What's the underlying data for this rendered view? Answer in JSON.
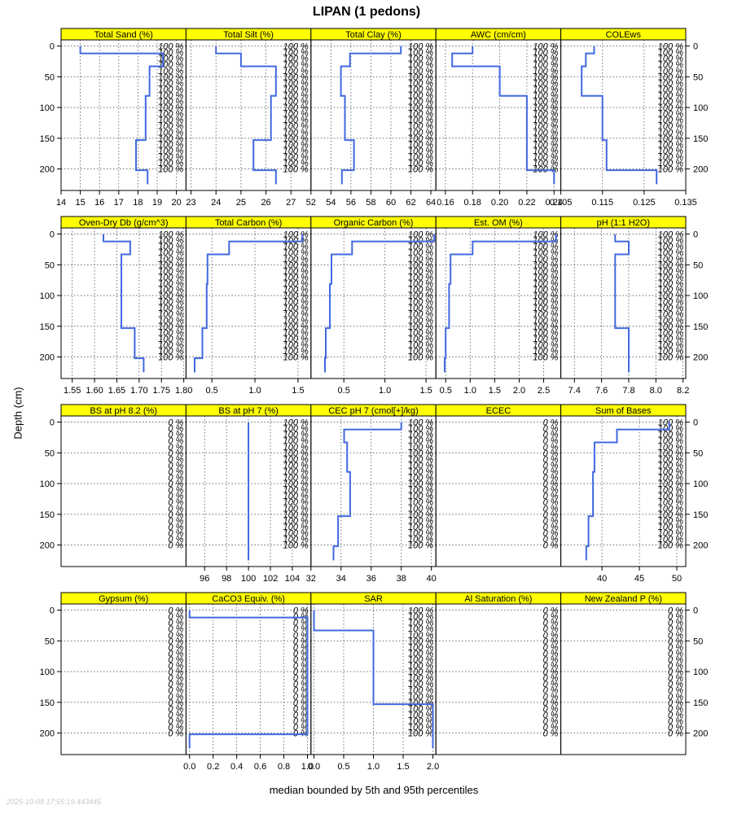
{
  "title": "LIPAN (1 pedons)",
  "ylabel": "Depth (cm)",
  "xlabel": "median bounded by 5th and 95th percentiles",
  "timestamp": "2025-10-08 17:55:19.443445",
  "colors": {
    "strip": "#ffff00",
    "line": "#4169e1",
    "grid": "#555555"
  },
  "chart_data": {
    "type": "line",
    "depth_axis": {
      "ylim": [
        235,
        -10
      ],
      "ticks": [
        0,
        50,
        100,
        150,
        200
      ]
    },
    "percent_depths": [
      0,
      10,
      20,
      30,
      40,
      50,
      60,
      70,
      80,
      90,
      100,
      110,
      120,
      130,
      140,
      150,
      160,
      170,
      180,
      190,
      200
    ],
    "percent_depths_tick_step": 20,
    "panels": [
      {
        "name": "Total Sand (%)",
        "xlim": [
          14,
          20.5
        ],
        "ticks": [
          14,
          15,
          16,
          17,
          18,
          19,
          20
        ],
        "pct": "100 %",
        "profile": [
          [
            15,
            0
          ],
          [
            15,
            12
          ],
          [
            19.3,
            12
          ],
          [
            19.3,
            33
          ],
          [
            18.6,
            33
          ],
          [
            18.6,
            81
          ],
          [
            18.4,
            81
          ],
          [
            18.4,
            153
          ],
          [
            17.9,
            153
          ],
          [
            17.9,
            202
          ],
          [
            18.5,
            202
          ],
          [
            18.5,
            225
          ]
        ]
      },
      {
        "name": "Total Silt (%)",
        "xlim": [
          22.8,
          27.8
        ],
        "ticks": [
          23,
          24,
          25,
          26,
          27
        ],
        "pct": "100 %",
        "profile": [
          [
            24,
            0
          ],
          [
            24,
            12
          ],
          [
            25,
            12
          ],
          [
            25,
            33
          ],
          [
            26.4,
            33
          ],
          [
            26.4,
            81
          ],
          [
            26.2,
            81
          ],
          [
            26.2,
            153
          ],
          [
            25.5,
            153
          ],
          [
            25.5,
            202
          ],
          [
            26.4,
            202
          ],
          [
            26.4,
            225
          ]
        ]
      },
      {
        "name": "Total Clay (%)",
        "xlim": [
          52,
          64.5
        ],
        "ticks": [
          52,
          54,
          56,
          58,
          60,
          62,
          64
        ],
        "pct": "100 %",
        "profile": [
          [
            61,
            0
          ],
          [
            61,
            12
          ],
          [
            55.9,
            12
          ],
          [
            55.9,
            33
          ],
          [
            55,
            33
          ],
          [
            55,
            81
          ],
          [
            55.4,
            81
          ],
          [
            55.4,
            153
          ],
          [
            56.3,
            153
          ],
          [
            56.3,
            202
          ],
          [
            55.1,
            202
          ],
          [
            55.1,
            225
          ]
        ]
      },
      {
        "name": "AWC (cm/cm)",
        "xlim": [
          0.153,
          0.245
        ],
        "ticks": [
          0.16,
          0.18,
          0.2,
          0.22,
          0.24
        ],
        "pct": "100 %",
        "profile": [
          [
            0.18,
            0
          ],
          [
            0.18,
            12
          ],
          [
            0.165,
            12
          ],
          [
            0.165,
            33
          ],
          [
            0.2,
            33
          ],
          [
            0.2,
            81
          ],
          [
            0.22,
            81
          ],
          [
            0.22,
            202
          ],
          [
            0.24,
            202
          ],
          [
            0.24,
            225
          ]
        ]
      },
      {
        "name": "COLEws",
        "xlim": [
          0.105,
          0.135
        ],
        "ticks": [
          0.105,
          0.115,
          0.125,
          0.135
        ],
        "pct": "100 %",
        "profile": [
          [
            0.113,
            0
          ],
          [
            0.113,
            12
          ],
          [
            0.111,
            12
          ],
          [
            0.111,
            33
          ],
          [
            0.11,
            33
          ],
          [
            0.11,
            81
          ],
          [
            0.115,
            81
          ],
          [
            0.115,
            153
          ],
          [
            0.116,
            153
          ],
          [
            0.116,
            202
          ],
          [
            0.128,
            202
          ],
          [
            0.128,
            225
          ]
        ]
      },
      {
        "name": "Oven-Dry Db (g/cm^3)",
        "xlim": [
          1.525,
          1.805
        ],
        "ticks": [
          1.55,
          1.6,
          1.65,
          1.7,
          1.75,
          1.8
        ],
        "pct": "100 %",
        "profile": [
          [
            1.62,
            0
          ],
          [
            1.62,
            12
          ],
          [
            1.68,
            12
          ],
          [
            1.68,
            33
          ],
          [
            1.66,
            33
          ],
          [
            1.66,
            153
          ],
          [
            1.69,
            153
          ],
          [
            1.69,
            202
          ],
          [
            1.71,
            202
          ],
          [
            1.71,
            225
          ]
        ]
      },
      {
        "name": "Total Carbon (%)",
        "xlim": [
          0.2,
          1.65
        ],
        "ticks": [
          0.5,
          1.0,
          1.5
        ],
        "pct": "100 %",
        "profile": [
          [
            1.55,
            0
          ],
          [
            1.55,
            12
          ],
          [
            0.7,
            12
          ],
          [
            0.7,
            33
          ],
          [
            0.45,
            33
          ],
          [
            0.45,
            81
          ],
          [
            0.44,
            81
          ],
          [
            0.44,
            153
          ],
          [
            0.39,
            153
          ],
          [
            0.39,
            202
          ],
          [
            0.3,
            202
          ],
          [
            0.3,
            225
          ]
        ]
      },
      {
        "name": "Organic Carbon (%)",
        "xlim": [
          0.1,
          1.62
        ],
        "ticks": [
          0.5,
          1.0,
          1.5
        ],
        "pct": "100 %",
        "profile": [
          [
            1.6,
            0
          ],
          [
            1.6,
            12
          ],
          [
            0.6,
            12
          ],
          [
            0.6,
            33
          ],
          [
            0.35,
            33
          ],
          [
            0.35,
            81
          ],
          [
            0.33,
            81
          ],
          [
            0.33,
            153
          ],
          [
            0.28,
            153
          ],
          [
            0.28,
            202
          ],
          [
            0.27,
            202
          ],
          [
            0.27,
            225
          ]
        ]
      },
      {
        "name": "Est. OM (%)",
        "xlim": [
          0.3,
          2.85
        ],
        "ticks": [
          0.5,
          1.0,
          1.5,
          2.0,
          2.5
        ],
        "pct": "100 %",
        "profile": [
          [
            2.75,
            0
          ],
          [
            2.75,
            12
          ],
          [
            1.05,
            12
          ],
          [
            1.05,
            33
          ],
          [
            0.6,
            33
          ],
          [
            0.6,
            81
          ],
          [
            0.57,
            81
          ],
          [
            0.57,
            153
          ],
          [
            0.5,
            153
          ],
          [
            0.5,
            202
          ],
          [
            0.48,
            202
          ],
          [
            0.48,
            225
          ]
        ]
      },
      {
        "name": "pH (1:1 H2O)",
        "xlim": [
          7.3,
          8.22
        ],
        "ticks": [
          7.4,
          7.6,
          7.8,
          8.0,
          8.2
        ],
        "pct": "100 %",
        "profile": [
          [
            7.7,
            0
          ],
          [
            7.7,
            12
          ],
          [
            7.8,
            12
          ],
          [
            7.8,
            33
          ],
          [
            7.7,
            33
          ],
          [
            7.7,
            153
          ],
          [
            7.8,
            153
          ],
          [
            7.8,
            225
          ]
        ]
      },
      {
        "name": "BS at pH 8.2 (%)",
        "xlim": [
          0,
          1
        ],
        "ticks": [],
        "pct": "0 %",
        "profile": []
      },
      {
        "name": "BS at pH 7 (%)",
        "xlim": [
          94.3,
          105.7
        ],
        "ticks": [
          96,
          98,
          100,
          102,
          104
        ],
        "pct": "100 %",
        "profile": [
          [
            100,
            0
          ],
          [
            100,
            225
          ]
        ]
      },
      {
        "name": "CEC pH 7 (cmol[+]/kg)",
        "xlim": [
          32,
          40.3
        ],
        "ticks": [
          32,
          34,
          36,
          38,
          40
        ],
        "pct": "100 %",
        "profile": [
          [
            38,
            0
          ],
          [
            38,
            12
          ],
          [
            34.2,
            12
          ],
          [
            34.2,
            33
          ],
          [
            34.4,
            33
          ],
          [
            34.4,
            81
          ],
          [
            34.6,
            81
          ],
          [
            34.6,
            153
          ],
          [
            33.8,
            153
          ],
          [
            33.8,
            202
          ],
          [
            33.5,
            202
          ],
          [
            33.5,
            225
          ]
        ]
      },
      {
        "name": "ECEC",
        "xlim": [
          0,
          1
        ],
        "ticks": [],
        "pct": "0 %",
        "profile": []
      },
      {
        "name": "Sum of Bases",
        "xlim": [
          34.5,
          51.2
        ],
        "ticks": [
          40,
          45,
          50
        ],
        "pct": "100 %",
        "profile": [
          [
            49,
            0
          ],
          [
            49,
            12
          ],
          [
            42,
            12
          ],
          [
            42,
            33
          ],
          [
            39,
            33
          ],
          [
            39,
            81
          ],
          [
            38.8,
            81
          ],
          [
            38.8,
            153
          ],
          [
            38.2,
            153
          ],
          [
            38.2,
            202
          ],
          [
            37.9,
            202
          ],
          [
            37.9,
            225
          ]
        ]
      },
      {
        "name": "Gypsum (%)",
        "xlim": [
          0,
          1
        ],
        "ticks": [],
        "pct": "0 %",
        "profile": []
      },
      {
        "name": "CaCO3 Equiv. (%)",
        "xlim": [
          -0.03,
          1.03
        ],
        "ticks": [
          0.0,
          0.2,
          0.4,
          0.6,
          0.8,
          1.0
        ],
        "pct": "0 %",
        "profile": [
          [
            0,
            0
          ],
          [
            0,
            12
          ],
          [
            1,
            12
          ],
          [
            1,
            202
          ],
          [
            0,
            202
          ],
          [
            0,
            225
          ]
        ]
      },
      {
        "name": "SAR",
        "xlim": [
          -0.05,
          2.05
        ],
        "ticks": [
          0.0,
          0.5,
          1.0,
          1.5,
          2.0
        ],
        "pct": "100 %",
        "profile": [
          [
            0,
            0
          ],
          [
            0,
            33
          ],
          [
            1,
            33
          ],
          [
            1,
            153
          ],
          [
            2,
            153
          ],
          [
            2,
            225
          ]
        ]
      },
      {
        "name": "Al Saturation (%)",
        "xlim": [
          0,
          1
        ],
        "ticks": [],
        "pct": "0 %",
        "profile": []
      },
      {
        "name": "New Zealand P (%)",
        "xlim": [
          0,
          1
        ],
        "ticks": [],
        "pct": "0 %",
        "profile": []
      }
    ]
  }
}
